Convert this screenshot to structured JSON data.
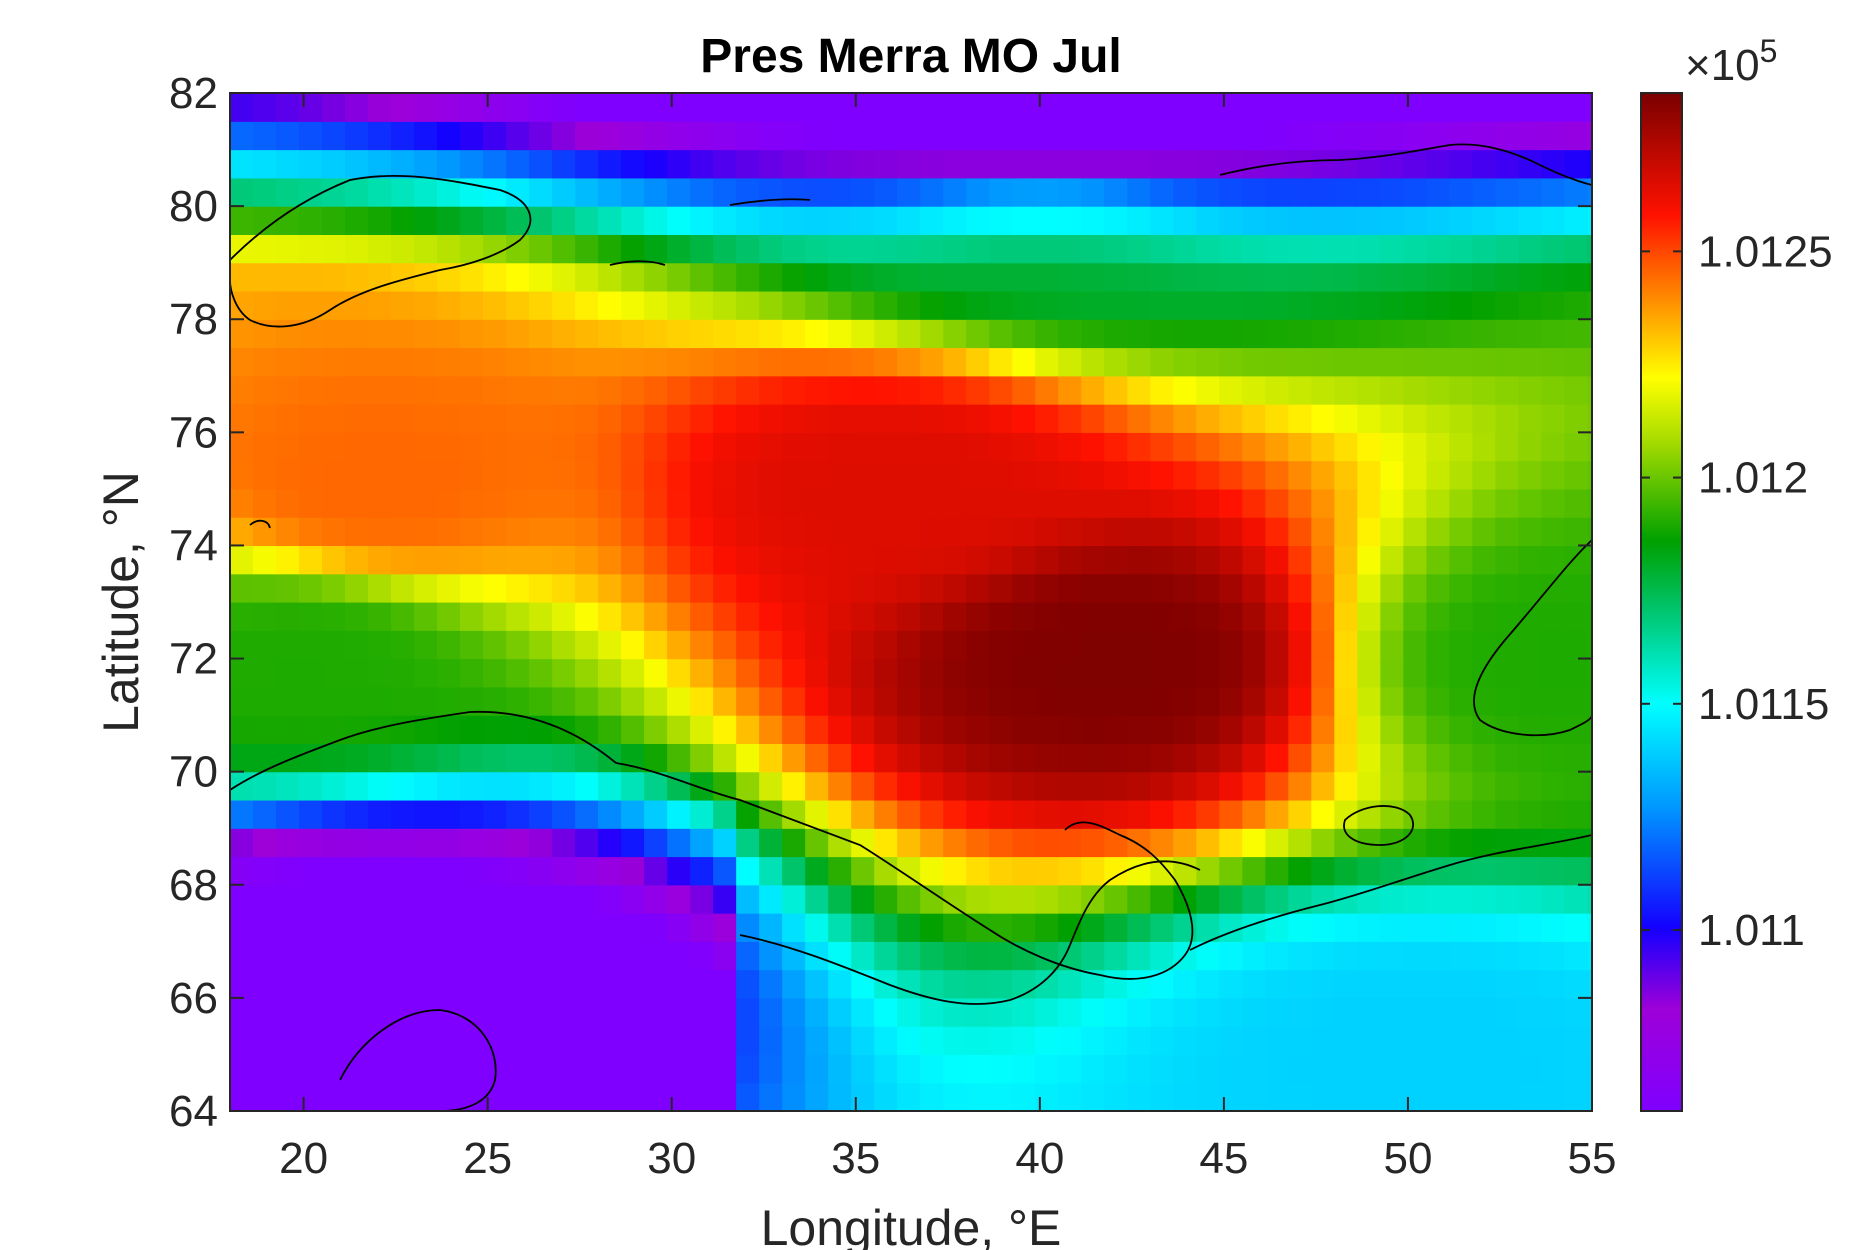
{
  "chart_data": {
    "type": "heatmap",
    "title": "Pres Merra MO Jul",
    "xlabel": "Longitude, °E",
    "ylabel": "Latitude, °N",
    "xlim": [
      18,
      55
    ],
    "ylim": [
      64,
      82
    ],
    "xticks": [
      20,
      25,
      30,
      35,
      40,
      45,
      50,
      55
    ],
    "yticks": [
      64,
      66,
      68,
      70,
      72,
      74,
      76,
      78,
      80,
      82
    ],
    "grid": false,
    "colormap": "jet-like (purple → blue → cyan → green → yellow → red → dark red)",
    "colorbar": {
      "location": "right",
      "clim": [
        1.0106,
        1.01285
      ],
      "ticks": [
        1.011,
        1.0115,
        1.012,
        1.0125
      ],
      "tick_labels": [
        "1.011",
        "1.0115",
        "1.012",
        "1.0125"
      ],
      "exponent_label": "×10",
      "exponent_power": "5"
    },
    "field_description_points": [
      {
        "lon": 42,
        "lat": 72,
        "value": 1.01284
      },
      {
        "lon": 36,
        "lat": 75,
        "value": 1.01265
      },
      {
        "lon": 22,
        "lat": 75,
        "value": 1.01245
      },
      {
        "lon": 20,
        "lat": 72,
        "value": 1.0119
      },
      {
        "lon": 22,
        "lat": 67,
        "value": 1.0108
      },
      {
        "lon": 40,
        "lat": 80,
        "value": 1.0118
      },
      {
        "lon": 40,
        "lat": 81.5,
        "value": 1.0113
      },
      {
        "lon": 54,
        "lat": 72,
        "value": 1.0119
      },
      {
        "lon": 50,
        "lat": 65,
        "value": 1.0114
      }
    ]
  }
}
